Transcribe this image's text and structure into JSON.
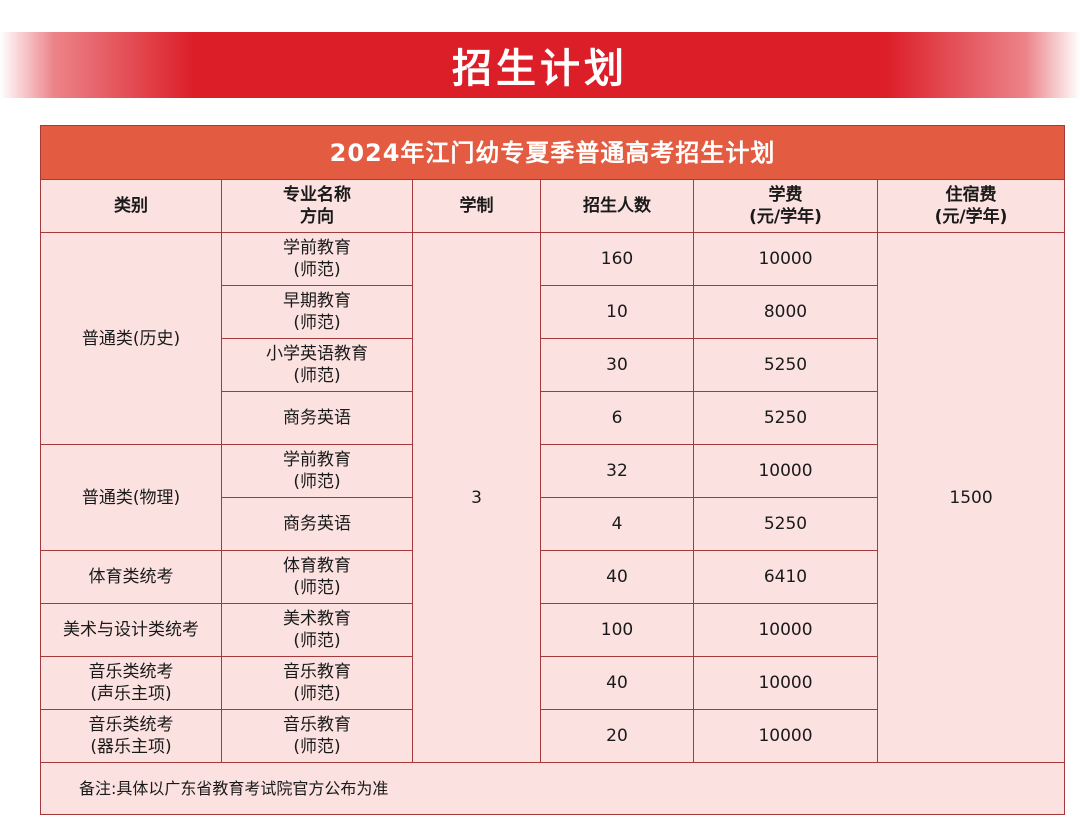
{
  "banner": {
    "title": "招生计划"
  },
  "table": {
    "title": "2024年江门幼专夏季普通高考招生计划",
    "headers": {
      "category": "类别",
      "major": "专业名称\n方向",
      "duration": "学制",
      "enrollment": "招生人数",
      "tuition": "学费\n(元/学年)",
      "dorm": "住宿费\n(元/学年)"
    },
    "duration_value": "3",
    "dorm_fee": "1500",
    "categories": {
      "history": "普通类(历史)",
      "physics": "普通类(物理)",
      "pe": "体育类统考",
      "art": "美术与设计类统考",
      "music_vocal": "音乐类统考\n(声乐主项)",
      "music_instr": "音乐类统考\n(器乐主项)"
    },
    "rows": [
      {
        "major": "学前教育\n(师范)",
        "count": "160",
        "tuition": "10000"
      },
      {
        "major": "早期教育\n(师范)",
        "count": "10",
        "tuition": "8000"
      },
      {
        "major": "小学英语教育\n(师范)",
        "count": "30",
        "tuition": "5250"
      },
      {
        "major": "商务英语",
        "count": "6",
        "tuition": "5250"
      },
      {
        "major": "学前教育\n(师范)",
        "count": "32",
        "tuition": "10000"
      },
      {
        "major": "商务英语",
        "count": "4",
        "tuition": "5250"
      },
      {
        "major": "体育教育\n(师范)",
        "count": "40",
        "tuition": "6410"
      },
      {
        "major": "美术教育\n(师范)",
        "count": "100",
        "tuition": "10000"
      },
      {
        "major": "音乐教育\n(师范)",
        "count": "40",
        "tuition": "10000"
      },
      {
        "major": "音乐教育\n(师范)",
        "count": "20",
        "tuition": "10000"
      }
    ],
    "note": "备注:具体以广东省教育考试院官方公布为准"
  }
}
